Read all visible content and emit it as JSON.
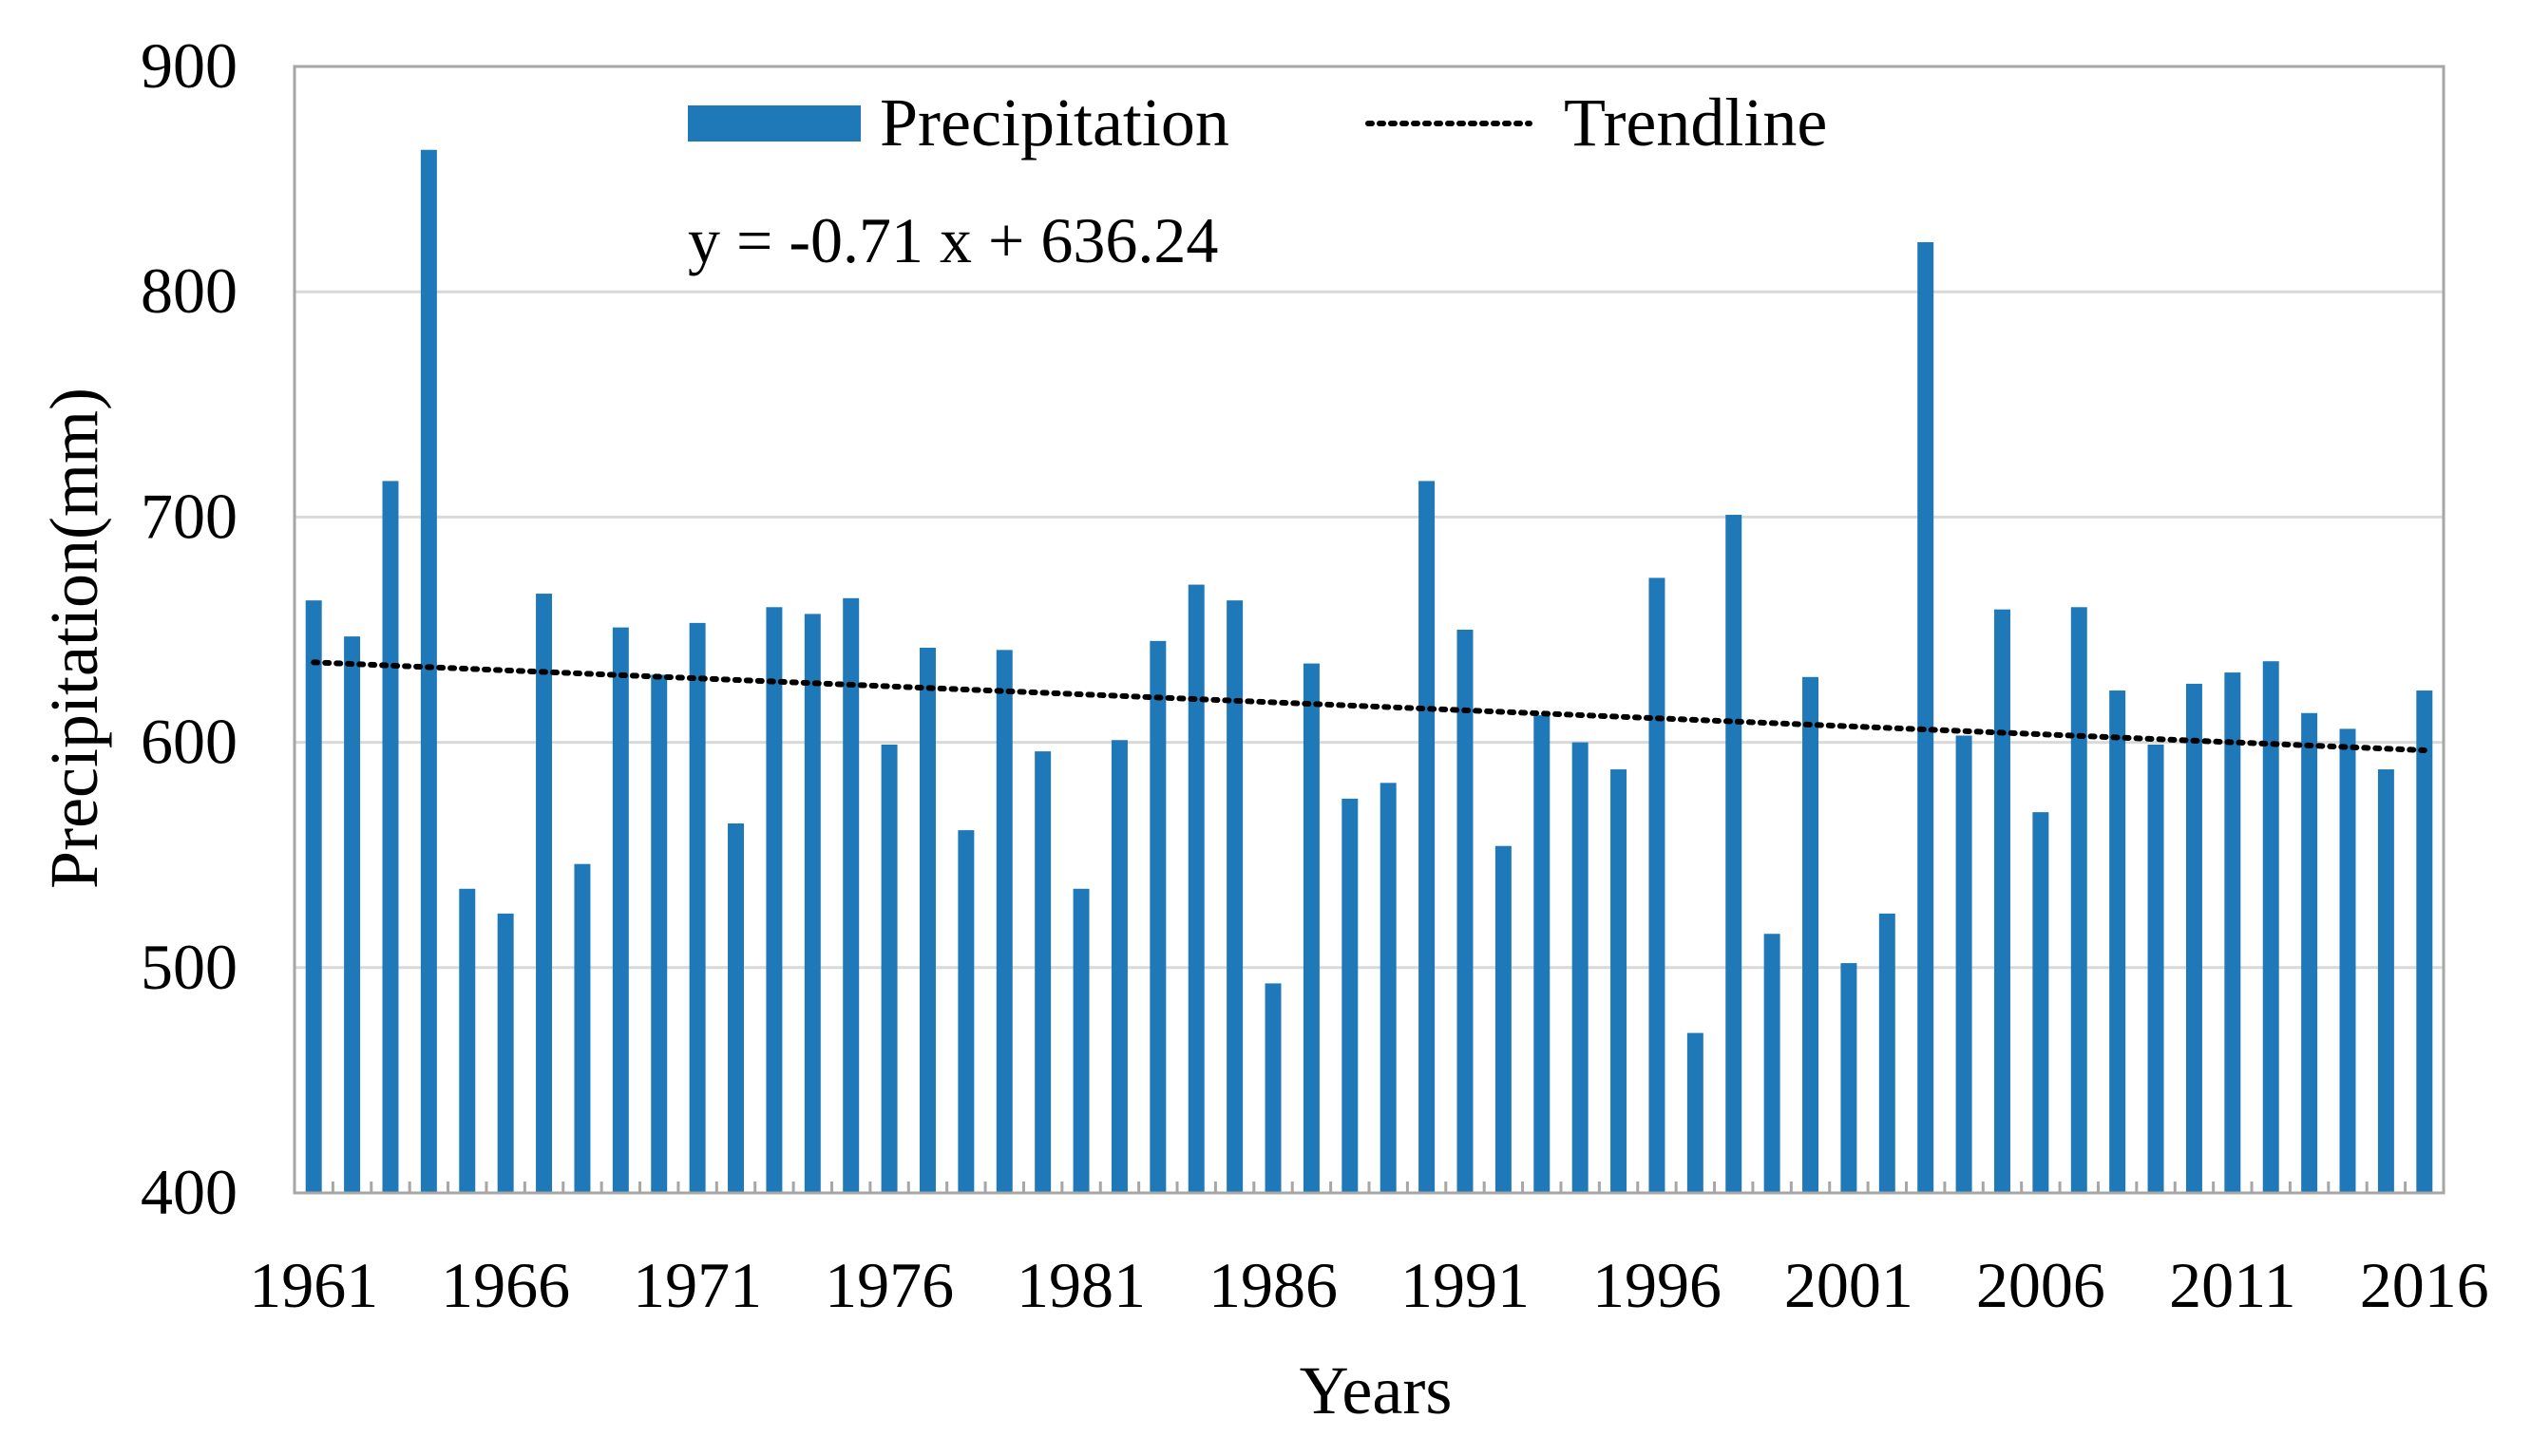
{
  "chart_data": {
    "type": "bar",
    "title": "",
    "xlabel": "Years",
    "ylabel": "Precipitation(mm)",
    "ylim": [
      400,
      900
    ],
    "yticks": [
      400,
      500,
      600,
      700,
      800,
      900
    ],
    "xtick_labels": [
      "1961",
      "1966",
      "1971",
      "1976",
      "1981",
      "1986",
      "1991",
      "1996",
      "2001",
      "2006",
      "2011",
      "2016"
    ],
    "grid": "horizontal",
    "legend_position": "top",
    "colors": {
      "bar": "#1F78B7",
      "trendline": "#000000",
      "grid": "#D9D9D9",
      "frame": "#A6A6A6"
    },
    "legend": {
      "bar_label": "Precipitation",
      "line_label": "Trendline"
    },
    "equation": "y = -0.71 x + 636.24",
    "trendline": {
      "slope": -0.71,
      "intercept": 636.24
    },
    "categories": [
      1961,
      1962,
      1963,
      1964,
      1965,
      1966,
      1967,
      1968,
      1969,
      1970,
      1971,
      1972,
      1973,
      1974,
      1975,
      1976,
      1977,
      1978,
      1979,
      1980,
      1981,
      1982,
      1983,
      1984,
      1985,
      1986,
      1987,
      1988,
      1989,
      1990,
      1991,
      1992,
      1993,
      1994,
      1995,
      1996,
      1997,
      1998,
      1999,
      2000,
      2001,
      2002,
      2003,
      2004,
      2005,
      2006,
      2007,
      2008,
      2009,
      2010,
      2011,
      2012,
      2013,
      2014,
      2015,
      2016
    ],
    "series": [
      {
        "name": "Precipitation",
        "values": [
          663,
          647,
          716,
          863,
          535,
          524,
          666,
          546,
          651,
          630,
          653,
          564,
          660,
          657,
          664,
          599,
          642,
          561,
          641,
          596,
          535,
          601,
          645,
          670,
          663,
          493,
          635,
          575,
          582,
          716,
          650,
          554,
          612,
          600,
          588,
          673,
          471,
          701,
          515,
          629,
          502,
          524,
          822,
          603,
          659,
          569,
          660,
          623,
          599,
          626,
          631,
          636,
          613,
          606,
          588,
          623
        ]
      }
    ]
  }
}
